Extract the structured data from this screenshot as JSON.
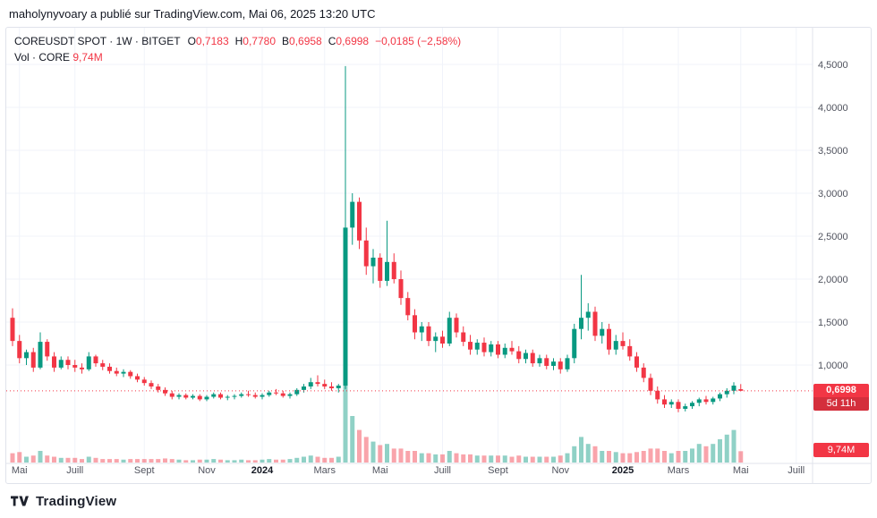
{
  "attribution": {
    "text": "maholynyvoary a publié sur TradingView.com, Mai 06, 2025 13:20 UTC"
  },
  "legend": {
    "title": "COREUSDT SPOT · 1W · BITGET",
    "o_label": "O",
    "o": "0,7183",
    "h_label": "H",
    "h": "0,7780",
    "b_label": "B",
    "b": "0,6958",
    "c_label": "C",
    "c": "0,6998",
    "change": "−0,0185 (−2,58%)",
    "vol_label": "Vol · CORE",
    "vol_value": "9,74M"
  },
  "price_badge": {
    "price": "0,6998",
    "countdown": "5d 11h"
  },
  "volume_badge": {
    "value": "9,74M"
  },
  "footer": {
    "brand": "TradingView"
  },
  "colors": {
    "up": "#089981",
    "down": "#f23645",
    "grid": "#f0f3fa",
    "axis_line": "#e0e3eb",
    "axis_text": "#50535e",
    "last_price_line": "#f23645"
  },
  "chart_data": {
    "type": "candlestick",
    "title": "COREUSDT SPOT weekly candles with volume, Bitget",
    "symbol": "COREUSDT",
    "interval": "1W",
    "exchange": "BITGET",
    "last_price": 0.6998,
    "last_volume_m": 9.74,
    "ylim": [
      0.4,
      4.7
    ],
    "price_ticks": [
      {
        "label": "4,5000",
        "value": 4.5
      },
      {
        "label": "4,0000",
        "value": 4.0
      },
      {
        "label": "3,5000",
        "value": 3.5
      },
      {
        "label": "3,0000",
        "value": 3.0
      },
      {
        "label": "2,5000",
        "value": 2.5
      },
      {
        "label": "2,0000",
        "value": 2.0
      },
      {
        "label": "1,5000",
        "value": 1.5
      },
      {
        "label": "1,0000",
        "value": 1.0
      }
    ],
    "time_ticks": [
      {
        "label": "Mai",
        "week": 1,
        "major": false
      },
      {
        "label": "Juill",
        "week": 9,
        "major": false
      },
      {
        "label": "Sept",
        "week": 19,
        "major": false
      },
      {
        "label": "Nov",
        "week": 28,
        "major": false
      },
      {
        "label": "2024",
        "week": 36,
        "major": true
      },
      {
        "label": "Mars",
        "week": 45,
        "major": false
      },
      {
        "label": "Mai",
        "week": 53,
        "major": false
      },
      {
        "label": "Juill",
        "week": 62,
        "major": false
      },
      {
        "label": "Sept",
        "week": 70,
        "major": false
      },
      {
        "label": "Nov",
        "week": 79,
        "major": false
      },
      {
        "label": "2025",
        "week": 88,
        "major": true
      },
      {
        "label": "Mars",
        "week": 96,
        "major": false
      },
      {
        "label": "Mai",
        "week": 105,
        "major": false
      },
      {
        "label": "Juill",
        "week": 113,
        "major": false
      }
    ],
    "candles_format": [
      "open",
      "high",
      "low",
      "close",
      "volume_millions"
    ],
    "candles": [
      [
        1.55,
        1.66,
        1.22,
        1.28,
        8
      ],
      [
        1.28,
        1.35,
        1.02,
        1.08,
        9
      ],
      [
        1.08,
        1.18,
        1.0,
        1.15,
        5
      ],
      [
        1.15,
        1.2,
        0.92,
        0.97,
        6
      ],
      [
        0.97,
        1.38,
        0.95,
        1.27,
        10
      ],
      [
        1.27,
        1.3,
        1.05,
        1.1,
        6
      ],
      [
        1.1,
        1.15,
        0.92,
        0.97,
        5
      ],
      [
        0.97,
        1.1,
        0.95,
        1.06,
        4
      ],
      [
        1.06,
        1.1,
        0.95,
        1.0,
        4
      ],
      [
        1.0,
        1.06,
        0.92,
        0.97,
        4
      ],
      [
        0.97,
        1.02,
        0.9,
        0.95,
        3
      ],
      [
        0.95,
        1.15,
        0.93,
        1.1,
        5
      ],
      [
        1.1,
        1.12,
        0.98,
        1.02,
        4
      ],
      [
        1.02,
        1.06,
        0.94,
        0.98,
        3
      ],
      [
        0.98,
        1.02,
        0.9,
        0.93,
        3
      ],
      [
        0.93,
        0.97,
        0.87,
        0.9,
        3
      ],
      [
        0.9,
        0.95,
        0.86,
        0.92,
        2.5
      ],
      [
        0.92,
        0.94,
        0.84,
        0.87,
        3
      ],
      [
        0.87,
        0.9,
        0.8,
        0.83,
        3
      ],
      [
        0.83,
        0.86,
        0.76,
        0.79,
        3
      ],
      [
        0.79,
        0.82,
        0.72,
        0.75,
        3
      ],
      [
        0.75,
        0.78,
        0.68,
        0.71,
        3
      ],
      [
        0.71,
        0.74,
        0.64,
        0.67,
        3.5
      ],
      [
        0.67,
        0.7,
        0.6,
        0.63,
        3
      ],
      [
        0.63,
        0.67,
        0.6,
        0.65,
        2.5
      ],
      [
        0.65,
        0.67,
        0.6,
        0.62,
        2
      ],
      [
        0.62,
        0.66,
        0.6,
        0.64,
        2
      ],
      [
        0.64,
        0.66,
        0.58,
        0.6,
        2.5
      ],
      [
        0.6,
        0.65,
        0.58,
        0.63,
        2.5
      ],
      [
        0.63,
        0.68,
        0.61,
        0.66,
        3
      ],
      [
        0.66,
        0.68,
        0.6,
        0.62,
        2.5
      ],
      [
        0.62,
        0.65,
        0.59,
        0.63,
        2
      ],
      [
        0.63,
        0.66,
        0.6,
        0.64,
        2
      ],
      [
        0.64,
        0.68,
        0.62,
        0.66,
        2.5
      ],
      [
        0.66,
        0.7,
        0.63,
        0.65,
        2
      ],
      [
        0.65,
        0.68,
        0.61,
        0.63,
        2
      ],
      [
        0.63,
        0.67,
        0.6,
        0.65,
        2.5
      ],
      [
        0.65,
        0.7,
        0.63,
        0.68,
        3
      ],
      [
        0.68,
        0.72,
        0.65,
        0.67,
        2.5
      ],
      [
        0.67,
        0.7,
        0.62,
        0.64,
        2.5
      ],
      [
        0.64,
        0.68,
        0.61,
        0.66,
        3
      ],
      [
        0.66,
        0.73,
        0.64,
        0.71,
        4
      ],
      [
        0.71,
        0.78,
        0.68,
        0.75,
        5
      ],
      [
        0.75,
        0.85,
        0.72,
        0.8,
        6
      ],
      [
        0.8,
        0.88,
        0.75,
        0.78,
        5
      ],
      [
        0.78,
        0.83,
        0.72,
        0.75,
        4
      ],
      [
        0.75,
        0.8,
        0.7,
        0.73,
        4
      ],
      [
        0.73,
        0.78,
        0.68,
        0.76,
        5
      ],
      [
        0.76,
        4.48,
        0.72,
        2.6,
        95
      ],
      [
        2.6,
        3.0,
        2.4,
        2.9,
        40
      ],
      [
        2.9,
        2.95,
        2.35,
        2.45,
        28
      ],
      [
        2.45,
        2.6,
        2.05,
        2.15,
        22
      ],
      [
        2.15,
        2.35,
        1.95,
        2.25,
        18
      ],
      [
        2.25,
        2.3,
        1.9,
        1.98,
        15
      ],
      [
        1.98,
        2.68,
        1.92,
        2.2,
        16
      ],
      [
        2.2,
        2.3,
        1.95,
        2.0,
        12
      ],
      [
        2.0,
        2.1,
        1.7,
        1.78,
        12
      ],
      [
        1.78,
        1.85,
        1.52,
        1.58,
        10
      ],
      [
        1.58,
        1.65,
        1.3,
        1.38,
        10
      ],
      [
        1.38,
        1.5,
        1.28,
        1.45,
        8
      ],
      [
        1.45,
        1.5,
        1.22,
        1.28,
        8
      ],
      [
        1.28,
        1.38,
        1.15,
        1.33,
        7
      ],
      [
        1.33,
        1.4,
        1.2,
        1.25,
        7
      ],
      [
        1.25,
        1.62,
        1.22,
        1.55,
        10
      ],
      [
        1.55,
        1.6,
        1.32,
        1.38,
        8
      ],
      [
        1.38,
        1.45,
        1.22,
        1.27,
        7
      ],
      [
        1.27,
        1.35,
        1.12,
        1.18,
        7
      ],
      [
        1.18,
        1.3,
        1.12,
        1.26,
        6
      ],
      [
        1.26,
        1.32,
        1.1,
        1.15,
        6
      ],
      [
        1.15,
        1.28,
        1.1,
        1.24,
        6
      ],
      [
        1.24,
        1.28,
        1.08,
        1.12,
        6
      ],
      [
        1.12,
        1.25,
        1.08,
        1.2,
        6
      ],
      [
        1.2,
        1.28,
        1.12,
        1.16,
        5
      ],
      [
        1.16,
        1.22,
        1.02,
        1.07,
        6
      ],
      [
        1.07,
        1.18,
        1.02,
        1.14,
        5
      ],
      [
        1.14,
        1.18,
        0.98,
        1.02,
        5
      ],
      [
        1.02,
        1.12,
        0.98,
        1.08,
        5
      ],
      [
        1.08,
        1.12,
        0.95,
        0.99,
        5
      ],
      [
        0.99,
        1.08,
        0.94,
        1.04,
        5
      ],
      [
        1.04,
        1.08,
        0.9,
        0.95,
        6
      ],
      [
        0.95,
        1.12,
        0.92,
        1.08,
        8
      ],
      [
        1.08,
        1.48,
        1.02,
        1.42,
        14
      ],
      [
        1.42,
        2.05,
        1.3,
        1.55,
        22
      ],
      [
        1.55,
        1.72,
        1.4,
        1.62,
        16
      ],
      [
        1.62,
        1.68,
        1.28,
        1.34,
        14
      ],
      [
        1.34,
        1.5,
        1.25,
        1.42,
        10
      ],
      [
        1.42,
        1.48,
        1.12,
        1.18,
        10
      ],
      [
        1.18,
        1.35,
        1.12,
        1.28,
        9
      ],
      [
        1.28,
        1.38,
        1.18,
        1.22,
        8
      ],
      [
        1.22,
        1.3,
        1.05,
        1.1,
        8
      ],
      [
        1.1,
        1.15,
        0.92,
        0.97,
        9
      ],
      [
        0.97,
        1.02,
        0.8,
        0.85,
        10
      ],
      [
        0.85,
        0.9,
        0.65,
        0.7,
        12
      ],
      [
        0.7,
        0.75,
        0.55,
        0.6,
        12
      ],
      [
        0.6,
        0.65,
        0.5,
        0.54,
        10
      ],
      [
        0.54,
        0.6,
        0.5,
        0.57,
        8
      ],
      [
        0.57,
        0.6,
        0.45,
        0.49,
        10
      ],
      [
        0.49,
        0.55,
        0.46,
        0.52,
        10
      ],
      [
        0.52,
        0.58,
        0.49,
        0.56,
        12
      ],
      [
        0.56,
        0.62,
        0.52,
        0.6,
        16
      ],
      [
        0.6,
        0.64,
        0.54,
        0.57,
        14
      ],
      [
        0.57,
        0.63,
        0.54,
        0.61,
        16
      ],
      [
        0.61,
        0.68,
        0.58,
        0.66,
        20
      ],
      [
        0.66,
        0.73,
        0.62,
        0.7,
        24
      ],
      [
        0.7,
        0.8,
        0.66,
        0.76,
        28
      ],
      [
        0.7183,
        0.778,
        0.6958,
        0.6998,
        9.74
      ]
    ]
  }
}
